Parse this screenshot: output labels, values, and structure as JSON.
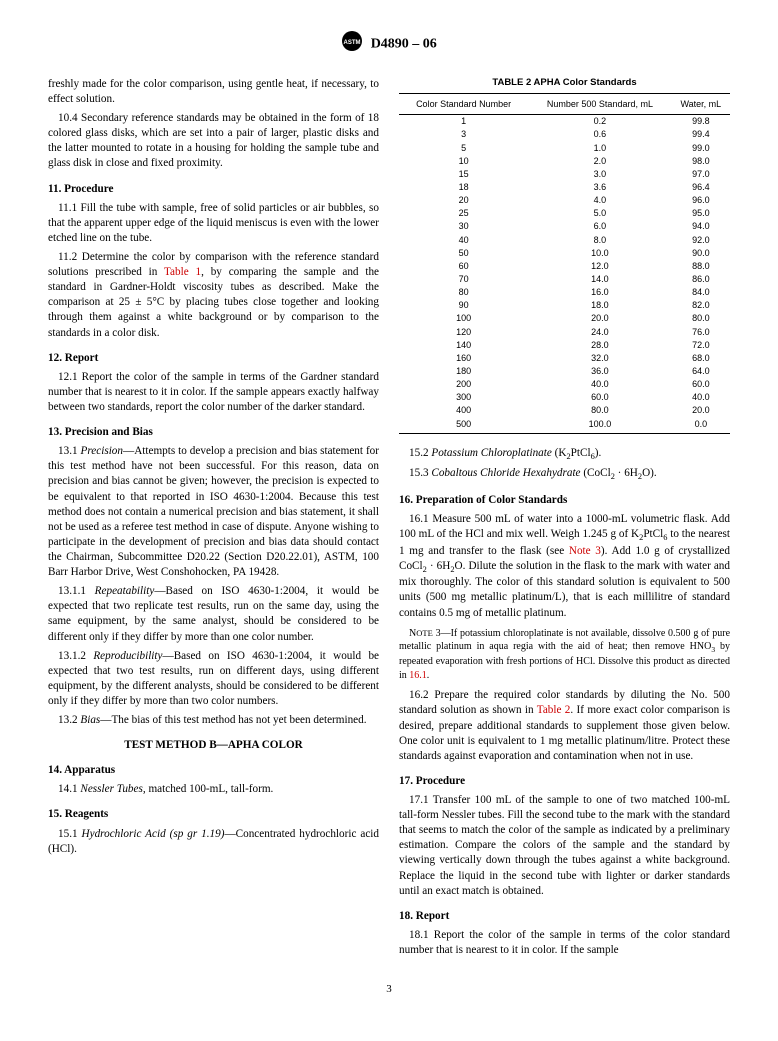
{
  "header": {
    "designation": "D4890 – 06"
  },
  "left": {
    "p1": "freshly made for the color comparison, using gentle heat, if necessary, to effect solution.",
    "p2": "10.4 Secondary reference standards may be obtained in the form of 18 colored glass disks, which are set into a pair of larger, plastic disks and the latter mounted to rotate in a housing for holding the sample tube and glass disk in close and fixed proximity.",
    "s11": "11.  Procedure",
    "p11_1": "11.1 Fill the tube with sample, free of solid particles or air bubbles, so that the apparent upper edge of the liquid meniscus is even with the lower etched line on the tube.",
    "p11_2a": "11.2 Determine the color by comparison with the reference standard solutions prescribed in ",
    "table1": "Table 1",
    "p11_2b": ", by comparing the sample and the standard in Gardner-Holdt viscosity tubes as described. Make the comparison at 25 ± 5°C by placing tubes close together and looking through them against a white background or by comparison to the standards in a color disk.",
    "s12": "12.  Report",
    "p12_1": "12.1 Report the color of the sample in terms of the Gardner standard number that is nearest to it in color. If the sample appears exactly halfway between two standards, report the color number of the darker standard.",
    "s13": "13.  Precision and Bias",
    "p13_1a": "13.1 ",
    "p13_1label": "Precision",
    "p13_1b": "—Attempts to develop a precision and bias statement for this test method have not been successful. For this reason, data on precision and bias cannot be given; however, the precision is expected to be equivalent to that reported in ISO 4630-1:2004. Because this test method does not contain a numerical precision and bias statement, it shall not be used as a referee test method in case of dispute. Anyone wishing to participate in the development of precision and bias data should contact the Chairman, Subcommittee D20.22 (Section D20.22.01), ASTM, 100 Barr Harbor Drive, West Conshohocken, PA 19428.",
    "p13_1_1a": "13.1.1 ",
    "p13_1_1label": "Repeatability",
    "p13_1_1b": "—Based on ISO 4630-1:2004, it would be expected that two replicate test results, run on the same day, using the same equipment, by the same analyst, should be considered to be different only if they differ by more than one color number.",
    "p13_1_2a": "13.1.2 ",
    "p13_1_2label": "Reproducibility",
    "p13_1_2b": "—Based on ISO 4630-1:2004, it would be expected that two test results, run on different days, using different equipment, by the different analysts, should be considered to be different only if they differ by more than two color numbers.",
    "p13_2a": "13.2 ",
    "p13_2label": "Bias",
    "p13_2b": "—The bias of this test method has not yet been determined.",
    "methodB": "TEST METHOD B—APHA COLOR",
    "s14": "14.  Apparatus",
    "p14_1a": "14.1 ",
    "p14_1label": "Nessler Tubes,",
    "p14_1b": " matched 100-mL, tall-form.",
    "s15": "15.  Reagents",
    "p15_1a": "15.1 ",
    "p15_1label": "Hydrochloric Acid (sp gr 1.19)",
    "p15_1b": "—Concentrated hydrochloric acid (HCl)."
  },
  "table2": {
    "caption": "TABLE 2 APHA Color Standards",
    "h1": "Color Standard Number",
    "h2": "Number 500 Standard, mL",
    "h3": "Water, mL",
    "rows": [
      [
        "1",
        "0.2",
        "99.8"
      ],
      [
        "3",
        "0.6",
        "99.4"
      ],
      [
        "5",
        "1.0",
        "99.0"
      ],
      [
        "10",
        "2.0",
        "98.0"
      ],
      [
        "15",
        "3.0",
        "97.0"
      ],
      [
        "18",
        "3.6",
        "96.4"
      ],
      [
        "20",
        "4.0",
        "96.0"
      ],
      [
        "25",
        "5.0",
        "95.0"
      ],
      [
        "30",
        "6.0",
        "94.0"
      ],
      [
        "40",
        "8.0",
        "92.0"
      ],
      [
        "50",
        "10.0",
        "90.0"
      ],
      [
        "60",
        "12.0",
        "88.0"
      ],
      [
        "70",
        "14.0",
        "86.0"
      ],
      [
        "80",
        "16.0",
        "84.0"
      ],
      [
        "90",
        "18.0",
        "82.0"
      ],
      [
        "100",
        "20.0",
        "80.0"
      ],
      [
        "120",
        "24.0",
        "76.0"
      ],
      [
        "140",
        "28.0",
        "72.0"
      ],
      [
        "160",
        "32.0",
        "68.0"
      ],
      [
        "180",
        "36.0",
        "64.0"
      ],
      [
        "200",
        "40.0",
        "60.0"
      ],
      [
        "300",
        "60.0",
        "40.0"
      ],
      [
        "400",
        "80.0",
        "20.0"
      ],
      [
        "500",
        "100.0",
        "0.0"
      ]
    ]
  },
  "right": {
    "p15_2a": "15.2 ",
    "p15_2label": "Potassium Chloroplatinate",
    "p15_2b": " (K",
    "p15_2c": "PtCl",
    "p15_2d": ").",
    "p15_3a": "15.3 ",
    "p15_3label": "Cobaltous Chloride Hexahydrate",
    "p15_3b": " (CoCl",
    "p15_3c": " · 6H",
    "p15_3d": "O).",
    "s16": "16.  Preparation of Color Standards",
    "p16_1a": "16.1 Measure 500 mL of water into a 1000-mL volumetric flask. Add 100 mL of the HCl and mix well. Weigh 1.245 g of K",
    "p16_1b": "PtCl",
    "p16_1c": " to the nearest 1 mg and transfer to the flask (see ",
    "note3link": "Note 3",
    "p16_1d": "). Add 1.0 g of crystallized CoCl",
    "p16_1e": " · 6H",
    "p16_1f": "O. Dilute the solution in the flask to the mark with water and mix thoroughly. The color of this standard solution is equivalent to 500 units (500 mg metallic platinum/L), that is each millilitre of standard contains 0.5 mg of metallic platinum.",
    "noteA": "NOTE 3—If potassium chloroplatinate is not available, dissolve 0.500 g of pure metallic platinum in aqua regia with the aid of heat; then remove HNO",
    "noteB": " by repeated evaporation with fresh portions of HCl. Dissolve this product as directed in ",
    "noteLink": "16.1",
    "noteC": ".",
    "p16_2a": "16.2 Prepare the required color standards by diluting the No. 500 standard solution as shown in ",
    "table2link": "Table 2",
    "p16_2b": ". If more exact color comparison is desired, prepare additional standards to supplement those given below. One color unit is equivalent to 1 mg metallic platinum/litre. Protect these standards against evaporation and contamination when not in use.",
    "s17": "17.  Procedure",
    "p17_1": "17.1 Transfer 100 mL of the sample to one of two matched 100-mL tall-form Nessler tubes. Fill the second tube to the mark with the standard that seems to match the color of the sample as indicated by a preliminary estimation. Compare the colors of the sample and the standard by viewing vertically down through the tubes against a white background. Replace the liquid in the second tube with lighter or darker standards until an exact match is obtained.",
    "s18": "18.  Report",
    "p18_1": "18.1 Report the color of the sample in terms of the color standard number that is nearest to it in color. If the sample"
  },
  "pagenum": "3"
}
